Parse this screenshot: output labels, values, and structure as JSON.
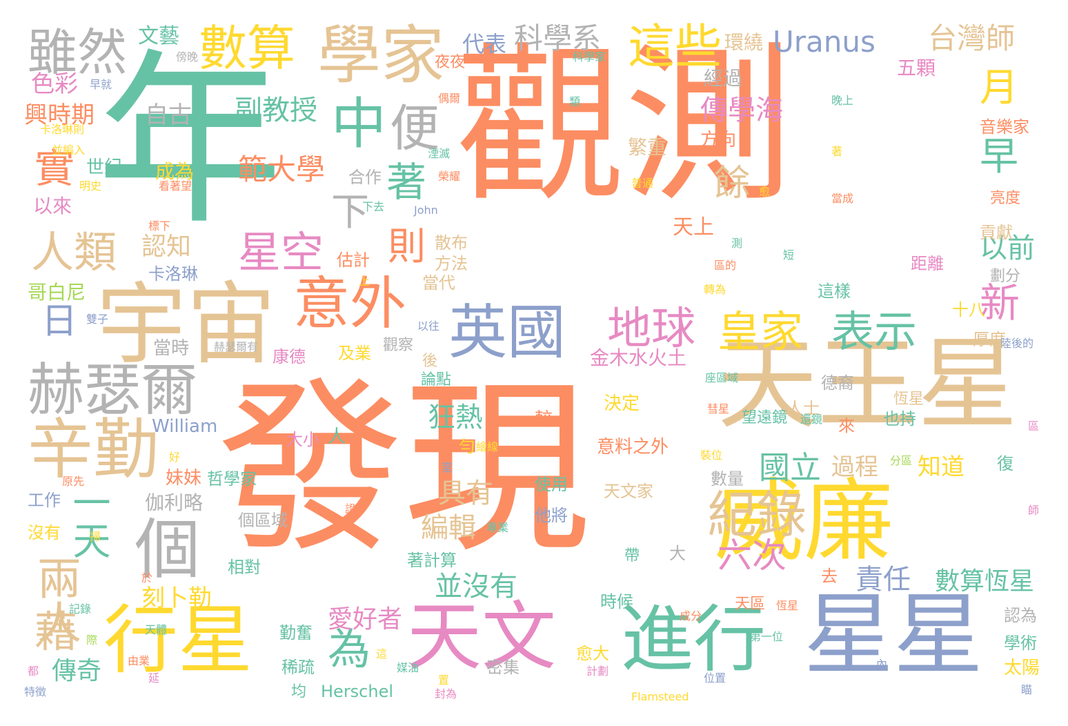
{
  "palette": {
    "orange": "#fc8d62",
    "teal": "#66c2a5",
    "blue": "#8da0cb",
    "pink": "#e78ac3",
    "green": "#a6d854",
    "yellow": "#ffd92f",
    "tan": "#e5c494",
    "gray": "#b3b3b3"
  },
  "words": [
    {
      "text": "發現",
      "color": "orange"
    },
    {
      "text": "觀測",
      "color": "orange"
    },
    {
      "text": "年",
      "color": "teal"
    },
    {
      "text": "天王星",
      "color": "tan"
    },
    {
      "text": "學家",
      "color": "tan"
    },
    {
      "text": "宇宙",
      "color": "tan"
    },
    {
      "text": "威廉",
      "color": "yellow"
    },
    {
      "text": "星星",
      "color": "blue"
    },
    {
      "text": "進行",
      "color": "teal"
    },
    {
      "text": "天文",
      "color": "pink"
    },
    {
      "text": "行星",
      "color": "yellow"
    },
    {
      "text": "辛勤",
      "color": "tan"
    },
    {
      "text": "赫瑟爾",
      "color": "gray"
    },
    {
      "text": "英國",
      "color": "blue"
    },
    {
      "text": "意外",
      "color": "orange"
    },
    {
      "text": "個",
      "color": "gray"
    },
    {
      "text": "雖然",
      "color": "gray"
    },
    {
      "text": "數算",
      "color": "yellow"
    },
    {
      "text": "這些",
      "color": "yellow"
    },
    {
      "text": "中",
      "color": "teal"
    },
    {
      "text": "便",
      "color": "gray"
    },
    {
      "text": "紀錄",
      "color": "tan"
    },
    {
      "text": "地球",
      "color": "pink"
    },
    {
      "text": "皇家",
      "color": "yellow"
    },
    {
      "text": "表示",
      "color": "teal"
    },
    {
      "text": "人類",
      "color": "tan"
    },
    {
      "text": "星空",
      "color": "pink"
    },
    {
      "text": "兩人",
      "color": "tan"
    },
    {
      "text": "一天",
      "color": "teal"
    },
    {
      "text": "藉",
      "color": "tan"
    },
    {
      "text": "為",
      "color": "teal"
    },
    {
      "text": "實",
      "color": "orange"
    },
    {
      "text": "著",
      "color": "teal"
    },
    {
      "text": "則",
      "color": "orange"
    },
    {
      "text": "新",
      "color": "pink"
    },
    {
      "text": "月",
      "color": "yellow"
    },
    {
      "text": "早",
      "color": "teal"
    },
    {
      "text": "日",
      "color": "blue"
    },
    {
      "text": "下",
      "color": "gray"
    },
    {
      "text": "餘",
      "color": "tan"
    },
    {
      "text": "Uranus",
      "color": "blue"
    },
    {
      "text": "台灣師",
      "color": "tan"
    },
    {
      "text": "科學系",
      "color": "gray"
    },
    {
      "text": "六次",
      "color": "pink"
    },
    {
      "text": "國立",
      "color": "teal"
    },
    {
      "text": "範大學",
      "color": "orange"
    },
    {
      "text": "傳學海",
      "color": "pink"
    },
    {
      "text": "副教授",
      "color": "teal"
    },
    {
      "text": "責任",
      "color": "blue"
    },
    {
      "text": "以前",
      "color": "teal"
    },
    {
      "text": "數算恆星",
      "color": "teal"
    },
    {
      "text": "並沒有",
      "color": "teal"
    },
    {
      "text": "狂熱",
      "color": "teal"
    },
    {
      "text": "具有",
      "color": "tan"
    },
    {
      "text": "編輯",
      "color": "tan"
    },
    {
      "text": "愛好者",
      "color": "pink"
    },
    {
      "text": "傳奇",
      "color": "teal"
    },
    {
      "text": "刻卜勒",
      "color": "yellow"
    },
    {
      "text": "認知",
      "color": "tan"
    },
    {
      "text": "天上",
      "color": "orange"
    },
    {
      "text": "自古",
      "color": "gray"
    },
    {
      "text": "金木水火土",
      "color": "pink"
    },
    {
      "text": "過程",
      "color": "tan"
    },
    {
      "text": "知道",
      "color": "yellow"
    },
    {
      "text": "色彩",
      "color": "pink"
    },
    {
      "text": "興時期",
      "color": "orange"
    },
    {
      "text": "文藝",
      "color": "teal"
    },
    {
      "text": "代表",
      "color": "blue"
    },
    {
      "text": "環繞",
      "color": "tan"
    },
    {
      "text": "經過",
      "color": "gray"
    },
    {
      "text": "五顆",
      "color": "pink"
    },
    {
      "text": "繁重",
      "color": "tan"
    },
    {
      "text": "方向",
      "color": "orange"
    },
    {
      "text": "成為",
      "color": "yellow"
    },
    {
      "text": "世紀",
      "color": "teal"
    },
    {
      "text": "以來",
      "color": "pink"
    },
    {
      "text": "合作",
      "color": "gray"
    },
    {
      "text": "估計",
      "color": "orange"
    },
    {
      "text": "散布",
      "color": "tan"
    },
    {
      "text": "方法",
      "color": "tan"
    },
    {
      "text": "當代",
      "color": "tan"
    },
    {
      "text": "哥白尼",
      "color": "green"
    },
    {
      "text": "卡洛琳",
      "color": "blue"
    },
    {
      "text": "當時",
      "color": "gray"
    },
    {
      "text": "康德",
      "color": "pink"
    },
    {
      "text": "及業",
      "color": "yellow"
    },
    {
      "text": "觀察",
      "color": "gray"
    },
    {
      "text": "論點",
      "color": "teal"
    },
    {
      "text": "後",
      "color": "tan"
    },
    {
      "text": "William",
      "color": "blue"
    },
    {
      "text": "大小",
      "color": "pink"
    },
    {
      "text": "人",
      "color": "teal"
    },
    {
      "text": "妹妹",
      "color": "orange"
    },
    {
      "text": "哲學家",
      "color": "teal"
    },
    {
      "text": "伽利略",
      "color": "gray"
    },
    {
      "text": "工作",
      "color": "blue"
    },
    {
      "text": "沒有",
      "color": "yellow"
    },
    {
      "text": "個區域",
      "color": "gray"
    },
    {
      "text": "相對",
      "color": "teal"
    },
    {
      "text": "著計算",
      "color": "teal"
    },
    {
      "text": "時候",
      "color": "teal"
    },
    {
      "text": "勤奮",
      "color": "teal"
    },
    {
      "text": "稀疏",
      "color": "teal"
    },
    {
      "text": "密集",
      "color": "gray"
    },
    {
      "text": "均",
      "color": "teal"
    },
    {
      "text": "Herschel",
      "color": "teal"
    },
    {
      "text": "愈大",
      "color": "yellow"
    },
    {
      "text": "天區",
      "color": "orange"
    },
    {
      "text": "決定",
      "color": "yellow"
    },
    {
      "text": "意料之外",
      "color": "orange"
    },
    {
      "text": "天文家",
      "color": "tan"
    },
    {
      "text": "使用",
      "color": "teal"
    },
    {
      "text": "他將",
      "color": "blue"
    },
    {
      "text": "數量",
      "color": "gray"
    },
    {
      "text": "望遠鏡",
      "color": "teal"
    },
    {
      "text": "德裔",
      "color": "gray"
    },
    {
      "text": "恆星",
      "color": "tan"
    },
    {
      "text": "人士",
      "color": "tan"
    },
    {
      "text": "來",
      "color": "orange"
    },
    {
      "text": "也持",
      "color": "teal"
    },
    {
      "text": "復",
      "color": "teal"
    },
    {
      "text": "十八",
      "color": "yellow"
    },
    {
      "text": "厚度",
      "color": "tan"
    },
    {
      "text": "距離",
      "color": "pink"
    },
    {
      "text": "劃分",
      "color": "gray"
    },
    {
      "text": "這樣",
      "color": "teal"
    },
    {
      "text": "貢獻",
      "color": "tan"
    },
    {
      "text": "亮度",
      "color": "orange"
    },
    {
      "text": "音樂家",
      "color": "orange"
    },
    {
      "text": "認為",
      "color": "gray"
    },
    {
      "text": "學術",
      "color": "teal"
    },
    {
      "text": "太陽",
      "color": "yellow"
    },
    {
      "text": "較",
      "color": "orange"
    },
    {
      "text": "大",
      "color": "gray"
    },
    {
      "text": "勻",
      "color": "yellow"
    },
    {
      "text": "去",
      "color": "orange"
    },
    {
      "text": "帶",
      "color": "teal"
    },
    {
      "text": "夜夜",
      "color": "orange"
    },
    {
      "text": "科學家",
      "color": "teal"
    },
    {
      "text": "Flamsteed",
      "color": "yellow"
    },
    {
      "text": "John",
      "color": "blue"
    },
    {
      "text": "早就",
      "color": "blue"
    },
    {
      "text": "卡洛琳則",
      "color": "yellow"
    },
    {
      "text": "並編入",
      "color": "yellow"
    },
    {
      "text": "明史",
      "color": "yellow"
    },
    {
      "text": "標下",
      "color": "orange"
    },
    {
      "text": "看著望",
      "color": "orange"
    },
    {
      "text": "雙子",
      "color": "blue"
    },
    {
      "text": "赫瑟爾有",
      "color": "gray"
    },
    {
      "text": "以往",
      "color": "blue"
    },
    {
      "text": "下去",
      "color": "teal"
    },
    {
      "text": "傍晚",
      "color": "gray"
    },
    {
      "text": "類",
      "color": "teal"
    },
    {
      "text": "晚上",
      "color": "teal"
    },
    {
      "text": "當成",
      "color": "orange"
    },
    {
      "text": "偶爾",
      "color": "orange"
    },
    {
      "text": "湮滅",
      "color": "teal"
    },
    {
      "text": "榮耀",
      "color": "orange"
    },
    {
      "text": "著",
      "color": "yellow"
    },
    {
      "text": "普通",
      "color": "yellow"
    },
    {
      "text": "愈",
      "color": "yellow"
    },
    {
      "text": "測",
      "color": "teal"
    },
    {
      "text": "短",
      "color": "teal"
    },
    {
      "text": "區的",
      "color": "orange"
    },
    {
      "text": "轉為",
      "color": "yellow"
    },
    {
      "text": "陸後的",
      "color": "blue"
    },
    {
      "text": "座區域",
      "color": "teal"
    },
    {
      "text": "彗星",
      "color": "orange"
    },
    {
      "text": "還鏡",
      "color": "teal"
    },
    {
      "text": "區",
      "color": "pink"
    },
    {
      "text": "分區",
      "color": "green"
    },
    {
      "text": "裝位",
      "color": "yellow"
    },
    {
      "text": "好",
      "color": "yellow"
    },
    {
      "text": "原先",
      "color": "orange"
    },
    {
      "text": "室",
      "color": "blue"
    },
    {
      "text": "證",
      "color": "orange"
    },
    {
      "text": "專業",
      "color": "teal"
    },
    {
      "text": "掃",
      "color": "yellow"
    },
    {
      "text": "記錄",
      "color": "teal"
    },
    {
      "text": "於",
      "color": "orange"
    },
    {
      "text": "成分",
      "color": "orange"
    },
    {
      "text": "第一位",
      "color": "teal"
    },
    {
      "text": "恆星",
      "color": "orange"
    },
    {
      "text": "繪線",
      "color": "yellow"
    },
    {
      "text": "特徵",
      "color": "blue"
    },
    {
      "text": "都",
      "color": "pink"
    },
    {
      "text": "由業",
      "color": "orange"
    },
    {
      "text": "天體",
      "color": "teal"
    },
    {
      "text": "際",
      "color": "green"
    },
    {
      "text": "延",
      "color": "pink"
    },
    {
      "text": "這",
      "color": "yellow"
    },
    {
      "text": "媒油",
      "color": "teal"
    },
    {
      "text": "置",
      "color": "yellow"
    },
    {
      "text": "封為",
      "color": "pink"
    },
    {
      "text": "計劃",
      "color": "pink"
    },
    {
      "text": "位置",
      "color": "blue"
    },
    {
      "text": "內",
      "color": "blue"
    },
    {
      "text": "師",
      "color": "pink"
    },
    {
      "text": "瞄",
      "color": "blue"
    },
    {
      "text": "上",
      "color": "yellow"
    }
  ]
}
